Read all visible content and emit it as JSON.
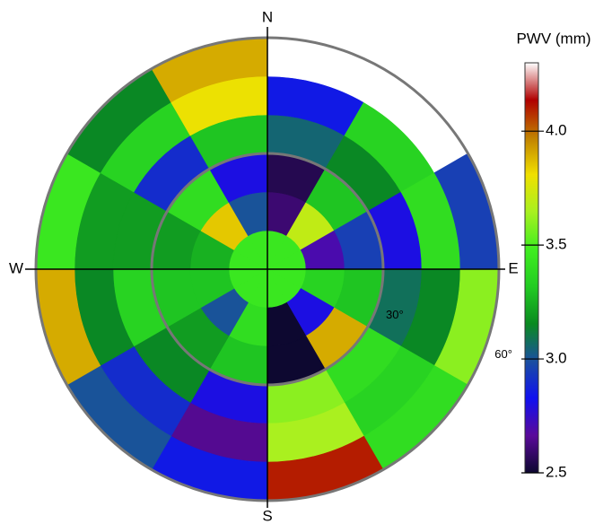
{
  "chart_data": {
    "type": "polar_heatmap",
    "colorbar_label": "PWV (mm)",
    "directions": [
      "N",
      "E",
      "S",
      "W"
    ],
    "rlim": [
      0,
      60
    ],
    "rticks": [
      {
        "value": 30,
        "label": "30°"
      },
      {
        "value": 60,
        "label": "60°"
      }
    ],
    "ring_edges": [
      0,
      10,
      20,
      30,
      40,
      50,
      60
    ],
    "azimuth_bins": [
      0,
      30,
      60,
      90,
      120,
      150,
      180,
      210,
      240,
      270,
      300,
      330,
      360
    ],
    "values": [
      [
        3.45,
        3.45,
        3.45,
        3.45,
        3.45,
        3.45,
        3.45,
        3.45,
        3.45,
        3.45,
        3.45,
        3.45
      ],
      [
        2.6,
        3.7,
        2.7,
        3.35,
        2.8,
        2.5,
        3.4,
        3.0,
        3.3,
        3.25,
        3.85,
        3.0
      ],
      [
        2.55,
        3.3,
        2.95,
        3.3,
        3.9,
        2.5,
        3.3,
        3.2,
        3.3,
        3.2,
        3.4,
        2.8
      ],
      [
        3.05,
        3.15,
        2.8,
        3.08,
        3.4,
        3.6,
        2.8,
        3.15,
        3.35,
        3.2,
        2.9,
        3.3
      ],
      [
        2.85,
        3.35,
        3.4,
        3.15,
        3.35,
        3.65,
        2.65,
        2.9,
        3.15,
        3.2,
        3.35,
        3.8
      ],
      [
        4.3,
        4.3,
        2.95,
        3.6,
        3.4,
        4.1,
        2.85,
        3.0,
        3.9,
        3.45,
        3.15,
        3.9
      ]
    ],
    "clim": [
      2.5,
      4.3
    ],
    "cticks": [
      2.5,
      {
        "value": 3,
        "label": "3.0"
      },
      3.5,
      {
        "value": 4,
        "label": "4.0"
      }
    ],
    "colors": [
      "#0d0830",
      "#5a0a9a",
      "#1010f0",
      "#1a50a0",
      "#0a8a20",
      "#22cc22",
      "#40ee20",
      "#a8f020",
      "#f0e000",
      "#c08000",
      "#b00000",
      "#ffffff"
    ]
  }
}
